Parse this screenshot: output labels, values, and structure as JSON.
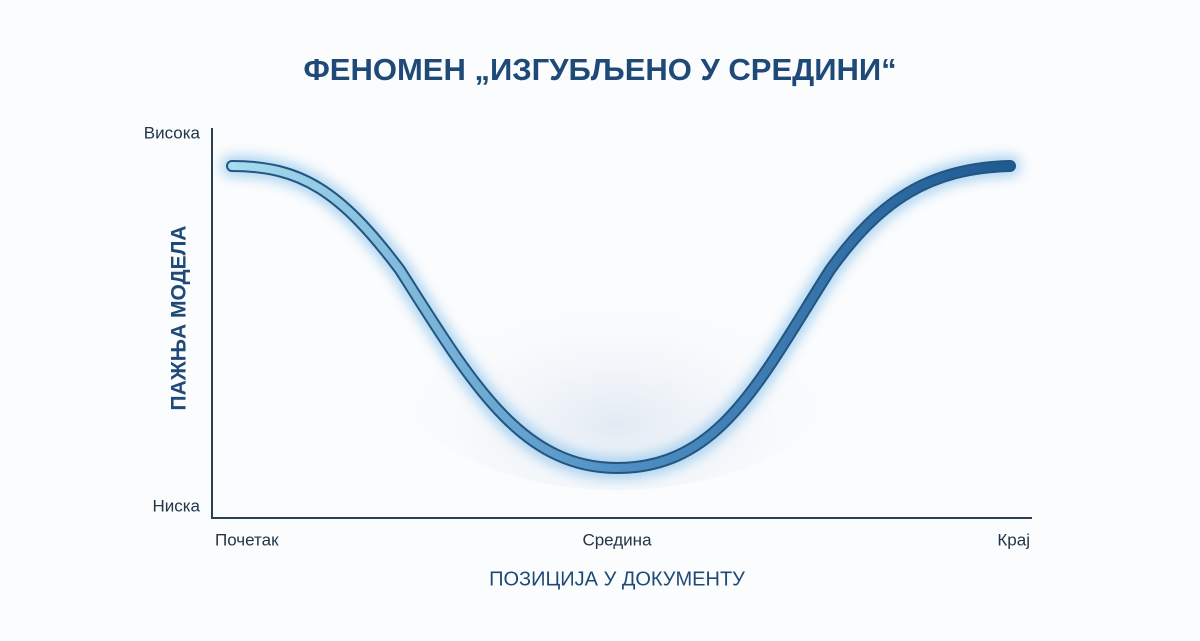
{
  "header": {
    "title": "ФЕНОМЕН „ИЗГУБЉЕНО У СРЕДИНИ“"
  },
  "y_axis": {
    "title": "ПАЖЊА МОДЕЛА",
    "top_label": "Висока",
    "bottom_label": "Ниска"
  },
  "x_axis": {
    "title": "ПОЗИЦИЈА У ДОКУМЕНТУ",
    "labels": [
      "Почетак",
      "Средина",
      "Крај"
    ]
  }
}
